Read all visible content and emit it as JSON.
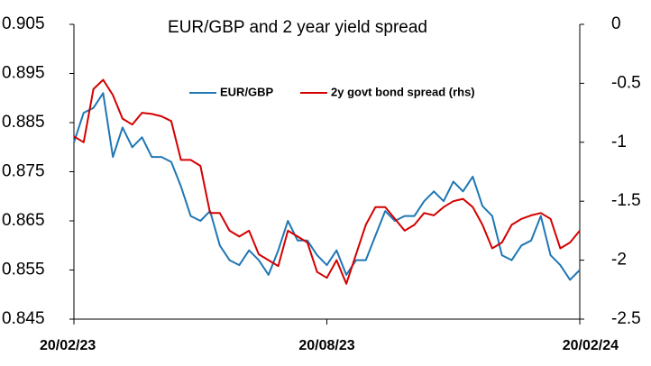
{
  "chart_data": {
    "type": "line",
    "title": "EUR/GBP and 2 year yield spread",
    "categories": [
      "20/02/23",
      null,
      null,
      null,
      null,
      null,
      null,
      null,
      null,
      null,
      null,
      null,
      null,
      null,
      null,
      null,
      null,
      null,
      null,
      null,
      null,
      null,
      null,
      null,
      null,
      null,
      "20/08/23",
      null,
      null,
      null,
      null,
      null,
      null,
      null,
      null,
      null,
      null,
      null,
      null,
      null,
      null,
      null,
      null,
      null,
      null,
      null,
      null,
      null,
      null,
      null,
      null,
      null,
      "20/02/24"
    ],
    "series": [
      {
        "name": "EUR/GBP",
        "color": "#1f77b4",
        "axis": "y",
        "values": [
          0.881,
          0.887,
          0.888,
          0.891,
          0.878,
          0.884,
          0.88,
          0.882,
          0.878,
          0.878,
          0.877,
          0.872,
          0.866,
          0.865,
          0.867,
          0.86,
          0.857,
          0.856,
          0.859,
          0.857,
          0.854,
          0.859,
          0.865,
          0.861,
          0.861,
          0.858,
          0.856,
          0.859,
          0.854,
          0.857,
          0.857,
          0.862,
          0.867,
          0.865,
          0.866,
          0.866,
          0.869,
          0.871,
          0.869,
          0.873,
          0.871,
          0.874,
          0.868,
          0.866,
          0.858,
          0.857,
          0.86,
          0.861,
          0.866,
          0.858,
          0.856,
          0.853,
          0.855
        ]
      },
      {
        "name": "2y govt bond spread (rhs)",
        "color": "#d40000",
        "axis": "y2",
        "values": [
          -0.95,
          -1.0,
          -0.55,
          -0.47,
          -0.6,
          -0.8,
          -0.85,
          -0.75,
          -0.76,
          -0.78,
          -0.82,
          -1.15,
          -1.15,
          -1.2,
          -1.6,
          -1.6,
          -1.75,
          -1.8,
          -1.75,
          -1.95,
          -2.0,
          -2.05,
          -1.75,
          -1.8,
          -1.85,
          -2.1,
          -2.15,
          -2.0,
          -2.2,
          -1.95,
          -1.7,
          -1.55,
          -1.55,
          -1.65,
          -1.75,
          -1.7,
          -1.6,
          -1.62,
          -1.55,
          -1.5,
          -1.48,
          -1.55,
          -1.7,
          -1.9,
          -1.85,
          -1.7,
          -1.65,
          -1.62,
          -1.6,
          -1.65,
          -1.9,
          -1.85,
          -1.75
        ]
      }
    ],
    "ylim": [
      0.845,
      0.905
    ],
    "yticks": [
      0.845,
      0.855,
      0.865,
      0.875,
      0.885,
      0.895,
      0.905
    ],
    "y2lim": [
      -2.5,
      0
    ],
    "y2ticks": [
      -2.5,
      -2,
      -1.5,
      -1,
      -0.5,
      0
    ],
    "grid": false
  }
}
